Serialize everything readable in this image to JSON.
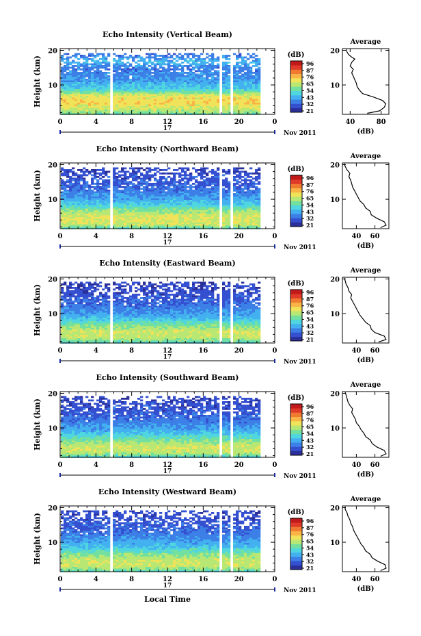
{
  "figure": {
    "x_axis_title": "Local Time",
    "date_label": "Nov 2011",
    "day_label": "17",
    "colorbar_unit": "(dB)",
    "colorbar_ticks": [
      "96",
      "87",
      "76",
      "65",
      "54",
      "43",
      "32",
      "21"
    ]
  },
  "colors": {
    "scale": [
      "#2b2f9a",
      "#3450d0",
      "#3c7fe6",
      "#43b0f0",
      "#4fd6df",
      "#73e0a0",
      "#b8e873",
      "#f0e35a",
      "#f9b445",
      "#f07a30",
      "#e03b28",
      "#c21a1a"
    ]
  },
  "chart_data": [
    {
      "type": "heatmap",
      "title": "Echo Intensity (Vertical Beam)",
      "ylabel": "Height (km)",
      "xlim": [
        0,
        24
      ],
      "ylim": [
        1.5,
        20.5
      ],
      "x_ticks": [
        "0",
        "4",
        "8",
        "12",
        "16",
        "20",
        "0"
      ],
      "y_ticks": [
        "20",
        "10"
      ],
      "value_range_db": [
        21,
        96
      ],
      "gaps_hours": [
        [
          5.4,
          5.7
        ],
        [
          17.6,
          17.9
        ],
        [
          19.0,
          19.3
        ]
      ],
      "data_end_hour": 22.3,
      "profile_db": [
        [
          1.8,
          55
        ],
        [
          3,
          62
        ],
        [
          5,
          70
        ],
        [
          7,
          67
        ],
        [
          9,
          48
        ],
        [
          11,
          42
        ],
        [
          13,
          38
        ],
        [
          15,
          36
        ],
        [
          17,
          44
        ],
        [
          19,
          35
        ],
        [
          20.3,
          34
        ]
      ],
      "average": {
        "title": "Average",
        "xlabel": "(dB)",
        "x_ticks": [
          "40",
          "80"
        ],
        "xlim": [
          30,
          90
        ],
        "y_ticks": [
          "20",
          "10"
        ],
        "profile": [
          [
            1.8,
            62
          ],
          [
            2.5,
            78
          ],
          [
            3.5,
            84
          ],
          [
            4.5,
            86
          ],
          [
            5.5,
            82
          ],
          [
            6.5,
            70
          ],
          [
            7.5,
            56
          ],
          [
            8.5,
            52
          ],
          [
            9.5,
            49
          ],
          [
            10.5,
            48
          ],
          [
            11.5,
            46
          ],
          [
            12.5,
            44
          ],
          [
            13.5,
            42
          ],
          [
            14.5,
            44
          ],
          [
            15.5,
            40
          ],
          [
            16.5,
            42
          ],
          [
            17.5,
            46
          ],
          [
            18.2,
            41
          ],
          [
            18.8,
            38
          ],
          [
            19.5,
            36
          ],
          [
            20.3,
            35
          ]
        ]
      }
    },
    {
      "type": "heatmap",
      "title": "Echo Intensity (Northward Beam)",
      "ylabel": "Height (km)",
      "xlim": [
        0,
        24
      ],
      "ylim": [
        1.5,
        20.5
      ],
      "x_ticks": [
        "0",
        "4",
        "8",
        "12",
        "16",
        "20",
        "0"
      ],
      "y_ticks": [
        "20",
        "10"
      ],
      "value_range_db": [
        21,
        96
      ],
      "gaps_hours": [
        [
          5.4,
          5.7
        ],
        [
          17.6,
          17.9
        ],
        [
          19.0,
          19.3
        ]
      ],
      "data_end_hour": 22.3,
      "profile_db": [
        [
          1.8,
          52
        ],
        [
          3,
          64
        ],
        [
          5,
          66
        ],
        [
          7,
          58
        ],
        [
          9,
          46
        ],
        [
          11,
          40
        ],
        [
          13,
          35
        ],
        [
          15,
          32
        ],
        [
          17,
          30
        ],
        [
          19,
          29
        ],
        [
          20.3,
          28
        ]
      ],
      "average": {
        "title": "Average",
        "xlabel": "(dB)",
        "x_ticks": [
          "40",
          "60"
        ],
        "xlim": [
          25,
          75
        ],
        "y_ticks": [
          "20",
          "10"
        ],
        "profile": [
          [
            1.8,
            66
          ],
          [
            2.5,
            72
          ],
          [
            3.5,
            70
          ],
          [
            4.5,
            62
          ],
          [
            5.5,
            56
          ],
          [
            6.5,
            55
          ],
          [
            7.5,
            50
          ],
          [
            8.5,
            48
          ],
          [
            9.5,
            44
          ],
          [
            10.5,
            42
          ],
          [
            11.5,
            40
          ],
          [
            12.5,
            38
          ],
          [
            13.5,
            36
          ],
          [
            14.5,
            35
          ],
          [
            15.5,
            34
          ],
          [
            16.5,
            32
          ],
          [
            17.5,
            33
          ],
          [
            18.5,
            30
          ],
          [
            19.5,
            28
          ],
          [
            20.3,
            27
          ]
        ]
      }
    },
    {
      "type": "heatmap",
      "title": "Echo Intensity (Eastward Beam)",
      "ylabel": "Height (km)",
      "xlim": [
        0,
        24
      ],
      "ylim": [
        1.5,
        20.5
      ],
      "x_ticks": [
        "0",
        "4",
        "8",
        "12",
        "16",
        "20",
        "0"
      ],
      "y_ticks": [
        "20",
        "10"
      ],
      "value_range_db": [
        21,
        96
      ],
      "gaps_hours": [
        [
          5.4,
          5.7
        ],
        [
          17.6,
          17.9
        ],
        [
          19.0,
          19.3
        ]
      ],
      "data_end_hour": 22.3,
      "profile_db": [
        [
          1.8,
          50
        ],
        [
          3,
          62
        ],
        [
          5,
          64
        ],
        [
          7,
          56
        ],
        [
          9,
          44
        ],
        [
          11,
          39
        ],
        [
          13,
          34
        ],
        [
          15,
          31
        ],
        [
          17,
          29
        ],
        [
          19,
          28
        ],
        [
          20.3,
          27
        ]
      ],
      "average": {
        "title": "Average",
        "xlabel": "(dB)",
        "x_ticks": [
          "40",
          "60"
        ],
        "xlim": [
          25,
          75
        ],
        "y_ticks": [
          "20",
          "10"
        ],
        "profile": [
          [
            1.8,
            64
          ],
          [
            2.5,
            72
          ],
          [
            3.5,
            70
          ],
          [
            4.5,
            60
          ],
          [
            5.5,
            56
          ],
          [
            6.5,
            55
          ],
          [
            7.5,
            50
          ],
          [
            8.5,
            47
          ],
          [
            9.5,
            44
          ],
          [
            10.5,
            42
          ],
          [
            11.5,
            40
          ],
          [
            12.5,
            38
          ],
          [
            13.5,
            36
          ],
          [
            14.5,
            34
          ],
          [
            15.5,
            35
          ],
          [
            16.5,
            32
          ],
          [
            17.5,
            31
          ],
          [
            18.5,
            29
          ],
          [
            19.5,
            28
          ],
          [
            20.3,
            27
          ]
        ]
      }
    },
    {
      "type": "heatmap",
      "title": "Echo Intensity (Southward Beam)",
      "ylabel": "Height (km)",
      "xlim": [
        0,
        24
      ],
      "ylim": [
        1.5,
        20.5
      ],
      "x_ticks": [
        "0",
        "4",
        "8",
        "12",
        "16",
        "20",
        "0"
      ],
      "y_ticks": [
        "20",
        "10"
      ],
      "value_range_db": [
        21,
        96
      ],
      "gaps_hours": [
        [
          5.4,
          5.7
        ],
        [
          17.6,
          17.9
        ],
        [
          19.0,
          19.3
        ]
      ],
      "data_end_hour": 22.3,
      "profile_db": [
        [
          1.8,
          50
        ],
        [
          3,
          62
        ],
        [
          5,
          64
        ],
        [
          7,
          55
        ],
        [
          9,
          44
        ],
        [
          11,
          39
        ],
        [
          13,
          34
        ],
        [
          15,
          31
        ],
        [
          17,
          30
        ],
        [
          19,
          29
        ],
        [
          20.3,
          28
        ]
      ],
      "average": {
        "title": "Average",
        "xlabel": "(dB)",
        "x_ticks": [
          "40",
          "60"
        ],
        "xlim": [
          25,
          75
        ],
        "y_ticks": [
          "20",
          "10"
        ],
        "profile": [
          [
            1.8,
            66
          ],
          [
            2.5,
            72
          ],
          [
            3.5,
            70
          ],
          [
            4.5,
            62
          ],
          [
            5.5,
            57
          ],
          [
            6.5,
            55
          ],
          [
            7.5,
            50
          ],
          [
            8.5,
            48
          ],
          [
            9.5,
            45
          ],
          [
            10.5,
            43
          ],
          [
            11.5,
            40
          ],
          [
            12.5,
            39
          ],
          [
            13.5,
            37
          ],
          [
            14.5,
            35
          ],
          [
            15.5,
            36
          ],
          [
            16.5,
            33
          ],
          [
            17.5,
            31
          ],
          [
            18.5,
            30
          ],
          [
            19.5,
            29
          ],
          [
            20.3,
            28
          ]
        ]
      }
    },
    {
      "type": "heatmap",
      "title": "Echo Intensity (Westward Beam)",
      "ylabel": "Height (km)",
      "xlim": [
        0,
        24
      ],
      "ylim": [
        1.5,
        20.5
      ],
      "x_ticks": [
        "0",
        "4",
        "8",
        "12",
        "16",
        "20",
        "0"
      ],
      "y_ticks": [
        "20",
        "10"
      ],
      "value_range_db": [
        21,
        96
      ],
      "gaps_hours": [
        [
          5.4,
          5.7
        ],
        [
          17.6,
          17.9
        ],
        [
          19.0,
          19.3
        ]
      ],
      "data_end_hour": 22.3,
      "profile_db": [
        [
          1.8,
          52
        ],
        [
          3,
          62
        ],
        [
          5,
          64
        ],
        [
          7,
          56
        ],
        [
          9,
          45
        ],
        [
          11,
          40
        ],
        [
          13,
          35
        ],
        [
          15,
          32
        ],
        [
          17,
          30
        ],
        [
          19,
          29
        ],
        [
          20.3,
          28
        ]
      ],
      "average": {
        "title": "Average",
        "xlabel": "(dB)",
        "x_ticks": [
          "40",
          "60"
        ],
        "xlim": [
          25,
          75
        ],
        "y_ticks": [
          "20",
          "10"
        ],
        "profile": [
          [
            1.8,
            66
          ],
          [
            2.5,
            72
          ],
          [
            3.5,
            71
          ],
          [
            4.5,
            63
          ],
          [
            5.5,
            57
          ],
          [
            6.5,
            55
          ],
          [
            7.5,
            50
          ],
          [
            8.5,
            48
          ],
          [
            9.5,
            45
          ],
          [
            10.5,
            43
          ],
          [
            11.5,
            41
          ],
          [
            12.5,
            39
          ],
          [
            13.5,
            37
          ],
          [
            14.5,
            36
          ],
          [
            15.5,
            34
          ],
          [
            16.5,
            33
          ],
          [
            17.5,
            31
          ],
          [
            18.5,
            30
          ],
          [
            19.5,
            28
          ],
          [
            20.3,
            28
          ]
        ]
      }
    }
  ]
}
